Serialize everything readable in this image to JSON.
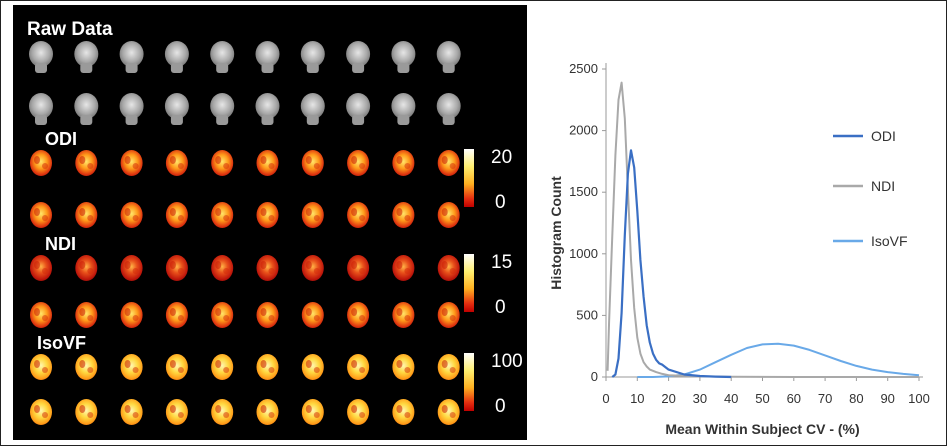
{
  "brain_panel": {
    "rows": [
      {
        "label": "Raw Data",
        "style": "gray",
        "colorbar": null
      },
      {
        "label": "",
        "style": "gray",
        "colorbar": null
      },
      {
        "label": "ODI",
        "style": "hot",
        "colorbar": {
          "max_label": "20",
          "min_label": "0"
        }
      },
      {
        "label": "",
        "style": "hot",
        "colorbar": null
      },
      {
        "label": "NDI",
        "style": "hot-dark",
        "colorbar": {
          "max_label": "15",
          "min_label": "0"
        }
      },
      {
        "label": "",
        "style": "hot",
        "colorbar": null
      },
      {
        "label": "IsoVF",
        "style": "hot-bright",
        "colorbar": {
          "max_label": "100",
          "min_label": "0"
        }
      },
      {
        "label": "",
        "style": "hot-bright",
        "colorbar": null
      }
    ],
    "columns_per_row": 10
  },
  "chart_data": {
    "type": "line",
    "title": "",
    "xlabel": "Mean Within Subject CV - (%)",
    "ylabel": "Histogram Count",
    "xlim": [
      0,
      100
    ],
    "ylim": [
      0,
      2500
    ],
    "xticks": [
      0,
      10,
      20,
      30,
      40,
      50,
      60,
      70,
      80,
      90,
      100
    ],
    "yticks": [
      0,
      500,
      1000,
      1500,
      2000,
      2500
    ],
    "grid": false,
    "legend_position": "right",
    "series": [
      {
        "name": "ODI",
        "color": "#3a6fc4",
        "x": [
          2,
          3,
          4,
          5,
          6,
          7,
          8,
          9,
          10,
          11,
          12,
          13,
          14,
          15,
          16,
          17,
          18,
          20,
          25,
          30,
          35,
          40
        ],
        "y": [
          0,
          20,
          150,
          520,
          1150,
          1650,
          1840,
          1700,
          1350,
          950,
          650,
          420,
          280,
          190,
          140,
          110,
          100,
          60,
          20,
          8,
          3,
          0
        ]
      },
      {
        "name": "NDI",
        "color": "#a9a9a9",
        "x": [
          0.5,
          1,
          2,
          3,
          4,
          5,
          6,
          7,
          8,
          9,
          10,
          11,
          12,
          13,
          14,
          16,
          18,
          20,
          30,
          40,
          60,
          80,
          100
        ],
        "y": [
          50,
          450,
          1150,
          1800,
          2250,
          2390,
          2100,
          1520,
          950,
          560,
          320,
          190,
          120,
          85,
          60,
          40,
          25,
          15,
          5,
          2,
          0,
          0,
          0
        ]
      },
      {
        "name": "IsoVF",
        "color": "#69a9e8",
        "x": [
          10,
          15,
          20,
          25,
          30,
          35,
          40,
          45,
          50,
          55,
          60,
          65,
          70,
          75,
          80,
          85,
          90,
          95,
          100
        ],
        "y": [
          0,
          0,
          5,
          20,
          60,
          120,
          180,
          235,
          265,
          270,
          255,
          220,
          175,
          130,
          90,
          60,
          40,
          25,
          15
        ]
      }
    ]
  }
}
